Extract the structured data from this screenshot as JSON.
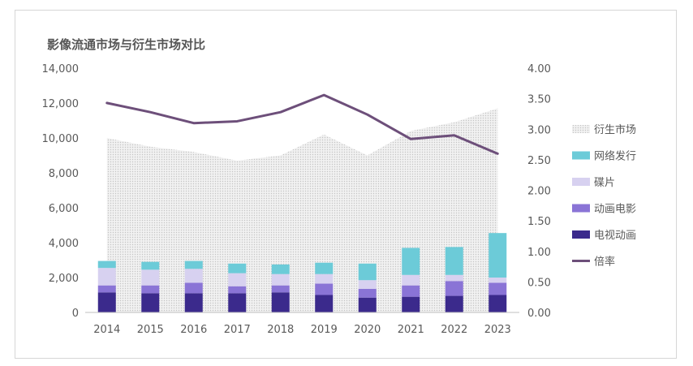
{
  "chart_data": {
    "type": "bar",
    "title": "影像流通市场与衍生市场对比",
    "categories": [
      "2014",
      "2015",
      "2016",
      "2017",
      "2018",
      "2019",
      "2020",
      "2021",
      "2022",
      "2023"
    ],
    "y_left": {
      "ylim": [
        0,
        14000
      ],
      "ticks": [
        "0",
        "2,000",
        "4,000",
        "6,000",
        "8,000",
        "10,000",
        "12,000",
        "14,000"
      ]
    },
    "y_right": {
      "ylim": [
        0,
        4.0
      ],
      "ticks": [
        "0.00",
        "0.50",
        "1.00",
        "1.50",
        "2.00",
        "2.50",
        "3.00",
        "3.50",
        "4.00"
      ]
    },
    "stacked_series": [
      {
        "name": "电视动画",
        "color": "#3b2a8c",
        "values": [
          1150,
          1100,
          1100,
          1100,
          1150,
          1000,
          850,
          900,
          950,
          1000
        ]
      },
      {
        "name": "动画电影",
        "color": "#8a74d6",
        "values": [
          400,
          450,
          600,
          400,
          400,
          650,
          500,
          650,
          850,
          700
        ]
      },
      {
        "name": "碟片",
        "color": "#d7d1f0",
        "values": [
          1000,
          900,
          800,
          750,
          650,
          550,
          500,
          600,
          350,
          300
        ]
      },
      {
        "name": "网络发行",
        "color": "#6ccbd8",
        "values": [
          400,
          450,
          450,
          550,
          550,
          650,
          950,
          1550,
          1600,
          2550
        ]
      }
    ],
    "area_series": {
      "name": "衍生市场",
      "color": "#e2e2e2",
      "values": [
        10000,
        9500,
        9200,
        8700,
        9000,
        10200,
        9000,
        10400,
        10900,
        11700
      ]
    },
    "line_series": {
      "name": "倍率",
      "color": "#6d4f7a",
      "axis": "right",
      "values": [
        3.43,
        3.28,
        3.1,
        3.13,
        3.28,
        3.56,
        3.24,
        2.84,
        2.9,
        2.6
      ]
    },
    "legend": {
      "placement": "right",
      "items": [
        "衍生市场",
        "网络发行",
        "碟片",
        "动画电影",
        "电视动画",
        "倍率"
      ]
    },
    "grid": false
  }
}
